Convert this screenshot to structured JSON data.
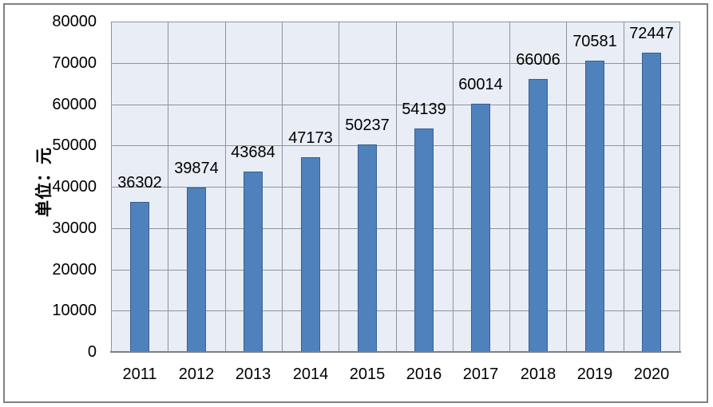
{
  "chart_data": {
    "type": "bar",
    "title": "",
    "categories": [
      "2011",
      "2012",
      "2013",
      "2014",
      "2015",
      "2016",
      "2017",
      "2018",
      "2019",
      "2020"
    ],
    "values": [
      36302,
      39874,
      43684,
      47173,
      50237,
      54139,
      60014,
      66006,
      70581,
      72447
    ],
    "data_labels": [
      "36302",
      "39874",
      "43684",
      "47173",
      "50237",
      "54139",
      "60014",
      "66006",
      "70581",
      "72447"
    ],
    "xlabel": "",
    "ylabel": "单位：元",
    "ylim": [
      0,
      80000
    ],
    "ytick_interval": 10000,
    "ytick_labels": [
      "0",
      "10000",
      "20000",
      "30000",
      "40000",
      "50000",
      "60000",
      "70000",
      "80000"
    ],
    "grid": true,
    "legend_position": "none",
    "colors": {
      "bar_fill": "#4F81BD",
      "bar_border": "#36618E",
      "plot_background": "#E9EDF5",
      "gridline": "#8E959C",
      "axis_line": "#7F7F7F",
      "frame_border": "#808080",
      "text": "#000000",
      "page_background": "#FFFFFF"
    }
  }
}
